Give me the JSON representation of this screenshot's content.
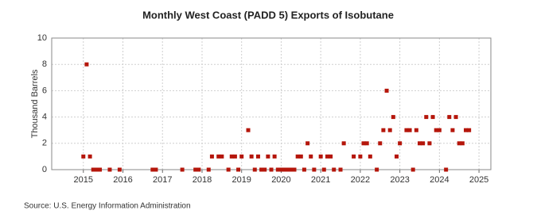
{
  "chart_data": {
    "type": "scatter",
    "title": "Monthly West Coast (PADD 5) Exports of Isobutane",
    "y_label": "Thousand Barrels",
    "source": "Source: U.S. Energy Information Administration",
    "color": "#b5160b",
    "grid": true,
    "xlim": [
      2014.2,
      2025.3
    ],
    "xticks": [
      2015,
      2016,
      2017,
      2018,
      2019,
      2020,
      2021,
      2022,
      2023,
      2024,
      2025
    ],
    "ylim": [
      0,
      10
    ],
    "yticks": [
      0,
      2,
      4,
      6,
      8,
      10
    ],
    "x": [
      2015.0,
      2015.083,
      2015.167,
      2015.25,
      2015.333,
      2015.417,
      2015.667,
      2015.917,
      2016.75,
      2016.833,
      2017.5,
      2017.833,
      2017.917,
      2018.167,
      2018.25,
      2018.417,
      2018.5,
      2018.667,
      2018.75,
      2018.833,
      2018.917,
      2019.0,
      2019.167,
      2019.25,
      2019.333,
      2019.417,
      2019.5,
      2019.583,
      2019.667,
      2019.75,
      2019.833,
      2019.917,
      2020.0,
      2020.083,
      2020.167,
      2020.25,
      2020.333,
      2020.417,
      2020.5,
      2020.583,
      2020.667,
      2020.75,
      2020.833,
      2021.0,
      2021.083,
      2021.167,
      2021.25,
      2021.333,
      2021.5,
      2021.583,
      2021.833,
      2022.0,
      2022.083,
      2022.167,
      2022.25,
      2022.417,
      2022.5,
      2022.583,
      2022.667,
      2022.75,
      2022.833,
      2022.917,
      2023.0,
      2023.167,
      2023.25,
      2023.333,
      2023.417,
      2023.5,
      2023.583,
      2023.667,
      2023.75,
      2023.833,
      2023.917,
      2024.0,
      2024.167,
      2024.25,
      2024.333,
      2024.417,
      2024.5,
      2024.583,
      2024.667,
      2024.75
    ],
    "values": [
      1,
      8,
      1,
      0,
      0,
      0,
      0,
      0,
      0,
      0,
      0,
      0,
      0,
      0,
      1,
      1,
      1,
      0,
      1,
      1,
      0,
      1,
      3,
      1,
      0,
      1,
      0,
      0,
      1,
      0,
      1,
      0,
      0,
      0,
      0,
      0,
      0,
      1,
      1,
      0,
      2,
      1,
      0,
      1,
      0,
      1,
      1,
      0,
      0,
      2,
      1,
      1,
      2,
      2,
      1,
      0,
      2,
      3,
      6,
      3,
      4,
      1,
      2,
      3,
      3,
      0,
      3,
      2,
      2,
      4,
      2,
      4,
      3,
      3,
      0,
      4,
      3,
      4,
      2,
      2,
      3,
      3
    ]
  }
}
